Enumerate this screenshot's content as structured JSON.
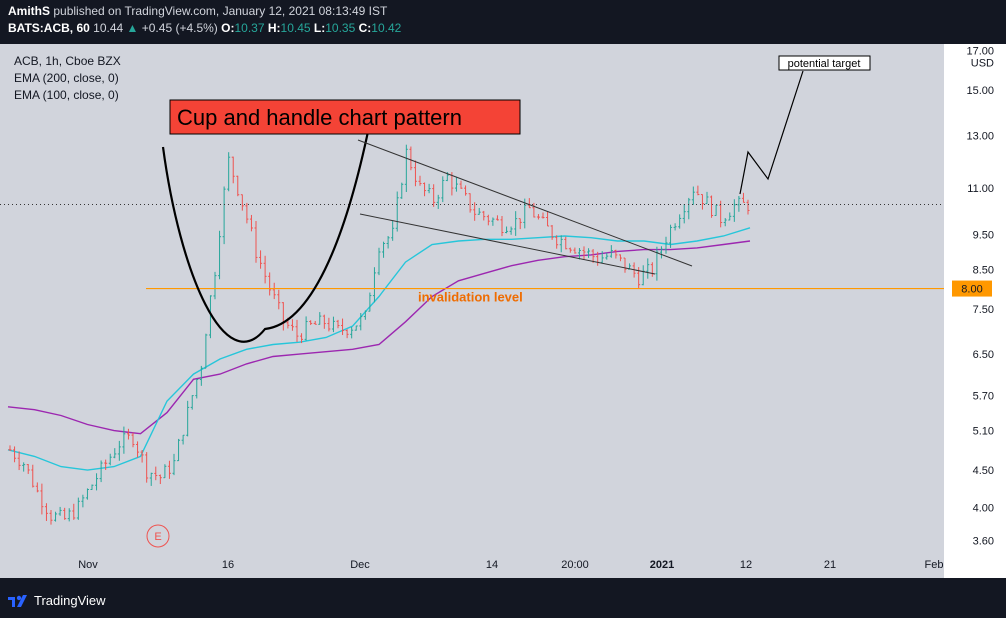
{
  "header": {
    "publisher": "AmithS",
    "published_text": "published on TradingView.com, January 12, 2021 08:13:49 IST",
    "symbol": "BATS:ACB, 60",
    "last": "10.44",
    "change": "+0.45 (+4.5%)",
    "o_label": "O:",
    "o": "10.37",
    "h_label": "H:",
    "h": "10.45",
    "l_label": "L:",
    "l": "10.35",
    "c_label": "C:",
    "c": "10.42"
  },
  "legend": {
    "title": "ACB, 1h, Cboe BZX",
    "ema200": "EMA (200, close, 0)",
    "ema100": "EMA (100, close, 0)"
  },
  "annotations": {
    "pattern_title": "Cup and  handle chart pattern",
    "potential_target": "potential target",
    "invalidation": "invalidation level",
    "earnings_marker": "E"
  },
  "footer": {
    "brand": "TradingView"
  },
  "colors": {
    "background": "#d1d4dc",
    "axis_bg": "#ffffff",
    "candle_up": "#26a69a",
    "candle_down": "#ef5350",
    "ema200": "#9c27b0",
    "ema100": "#26c6da",
    "invalidation": "#ff9800",
    "title_box": "#f44336"
  },
  "chart_data": {
    "type": "candlestick",
    "y_scale": "log",
    "y_ticks": [
      "17.00",
      "15.00",
      "13.00",
      "11.00",
      "9.50",
      "8.50",
      "7.50",
      "6.50",
      "5.70",
      "5.10",
      "4.50",
      "4.00",
      "3.60"
    ],
    "y_unit": "USD",
    "x_ticks": [
      "Nov",
      "16",
      "Dec",
      "14",
      "20:00",
      "2021",
      "12",
      "21",
      "Feb"
    ],
    "price_label": "8.00",
    "invalidation_level": 8.0,
    "current_price": 10.44,
    "ylim": [
      3.3,
      17.2
    ],
    "series": [
      {
        "name": "EMA (200, close, 0)",
        "values": [
          5.5,
          5.45,
          5.35,
          5.2,
          5.1,
          5.05,
          5.4,
          6.0,
          6.1,
          6.3,
          6.45,
          6.5,
          6.55,
          6.6,
          6.7,
          7.2,
          7.8,
          8.2,
          8.4,
          8.6,
          8.75,
          8.85,
          8.9,
          9.0,
          9.05,
          9.05,
          9.1,
          9.2,
          9.3
        ]
      },
      {
        "name": "EMA (100, close, 0)",
        "values": [
          4.8,
          4.7,
          4.55,
          4.5,
          4.55,
          4.7,
          5.6,
          6.1,
          6.4,
          6.6,
          6.7,
          6.75,
          6.85,
          7.1,
          7.8,
          8.7,
          9.2,
          9.3,
          9.35,
          9.35,
          9.4,
          9.45,
          9.4,
          9.3,
          9.3,
          9.2,
          9.3,
          9.45,
          9.7
        ]
      }
    ],
    "candles_approx_close": [
      4.8,
      4.6,
      4.2,
      3.9,
      3.85,
      4.0,
      4.3,
      4.6,
      4.9,
      5.0,
      4.5,
      4.4,
      4.6,
      5.4,
      6.3,
      8.5,
      12.0,
      10.5,
      9.0,
      8.0,
      7.2,
      6.9,
      7.1,
      7.2,
      7.0,
      7.1,
      7.3,
      9.2,
      9.5,
      12.3,
      11.0,
      10.6,
      11.4,
      10.8,
      10.2,
      10.0,
      9.8,
      9.9,
      10.3,
      9.8,
      9.4,
      9.2,
      9.0,
      8.8,
      8.9,
      8.6,
      8.3,
      8.5,
      9.4,
      10.2,
      11.0,
      10.5,
      10.0,
      10.4,
      10.44
    ],
    "projection": [
      12.2,
      10.9,
      15.8
    ]
  }
}
